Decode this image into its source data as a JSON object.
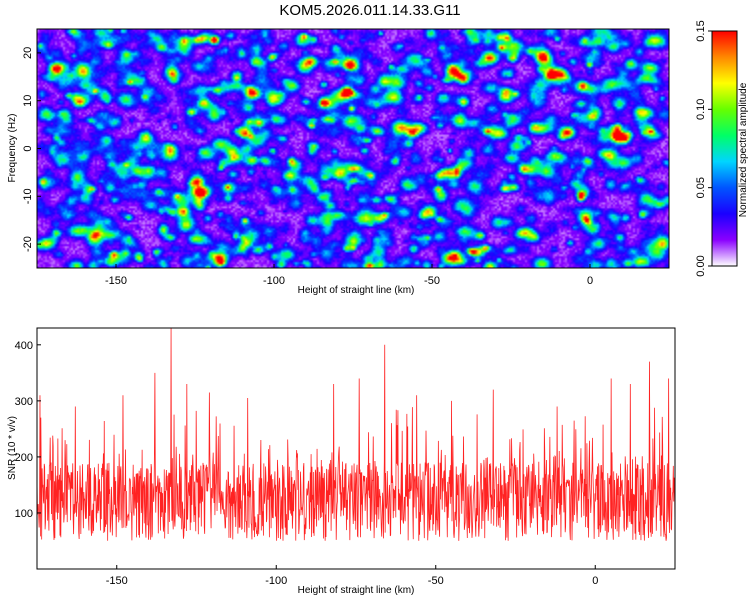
{
  "title": "KOM5.2026.011.14.33.G11",
  "colors": {
    "snr_line": "#ff2222",
    "axis": "#000000",
    "colormap": [
      "#ffffff",
      "#8a00ff",
      "#1a00ff",
      "#0055ff",
      "#00d5ff",
      "#00ff66",
      "#66ff00",
      "#ffff00",
      "#ff8800",
      "#ff0000"
    ]
  },
  "chart_data": [
    {
      "type": "heatmap",
      "title": "KOM5.2026.011.14.33.G11",
      "xlabel": "Height of straight line (km)",
      "ylabel": "Frequency (Hz)",
      "xlim": [
        -175,
        25
      ],
      "ylim": [
        -25,
        25
      ],
      "xticks": [
        -150,
        -100,
        -50,
        0
      ],
      "yticks": [
        -20,
        -10,
        0,
        10,
        20
      ],
      "xtick_labels": [
        "-150",
        "-100",
        "-50",
        "0"
      ],
      "ytick_labels": [
        "-20",
        "-10",
        "0",
        "10",
        "20"
      ],
      "colorbar": {
        "label": "Normalized spectral amplitude",
        "range": [
          0.0,
          0.15
        ],
        "ticks": [
          0.0,
          0.05,
          0.1,
          0.15
        ],
        "tick_labels": [
          "0.00",
          "0.05",
          "0.10",
          "0.15"
        ]
      },
      "description_values": {
        "background_level": 0.02,
        "typical_blob_level": 0.06,
        "max_level": 0.15,
        "peak_points": [
          {
            "x": -3,
            "y": -9.5,
            "z": 0.15
          },
          {
            "x": -119,
            "y": 23,
            "z": 0.12
          },
          {
            "x": -151,
            "y": -22,
            "z": 0.11
          },
          {
            "x": -77,
            "y": 12,
            "z": 0.1
          },
          {
            "x": -105,
            "y": 5.5,
            "z": 0.1
          },
          {
            "x": -35,
            "y": -18,
            "z": 0.09
          },
          {
            "x": -62,
            "y": -2.5,
            "z": 0.08
          }
        ]
      }
    },
    {
      "type": "line",
      "xlabel": "Height of straight line (km)",
      "ylabel": "SNR (10 * v/v)",
      "xlim": [
        -175,
        25
      ],
      "ylim": [
        0,
        430
      ],
      "xticks": [
        -150,
        -100,
        -50,
        0
      ],
      "yticks": [
        100,
        200,
        300,
        400
      ],
      "xtick_labels": [
        "-150",
        "-100",
        "-50",
        "0"
      ],
      "ytick_labels": [
        "100",
        "200",
        "300",
        "400"
      ],
      "series": [
        {
          "name": "SNR",
          "baseline_mean": 120,
          "noise_spread": 70,
          "spikes": [
            {
              "x": -174,
              "y": 310
            },
            {
              "x": -163,
              "y": 290
            },
            {
              "x": -148,
              "y": 310
            },
            {
              "x": -138,
              "y": 350
            },
            {
              "x": -133,
              "y": 430
            },
            {
              "x": -128,
              "y": 330
            },
            {
              "x": -121,
              "y": 315
            },
            {
              "x": -109,
              "y": 305
            },
            {
              "x": -82,
              "y": 330
            },
            {
              "x": -74,
              "y": 340
            },
            {
              "x": -66,
              "y": 400
            },
            {
              "x": -56,
              "y": 310
            },
            {
              "x": -45,
              "y": 300
            },
            {
              "x": -32,
              "y": 320
            },
            {
              "x": -12,
              "y": 290
            },
            {
              "x": 5,
              "y": 340
            },
            {
              "x": 11,
              "y": 330
            },
            {
              "x": 17,
              "y": 370
            },
            {
              "x": 23,
              "y": 340
            }
          ]
        }
      ]
    }
  ]
}
